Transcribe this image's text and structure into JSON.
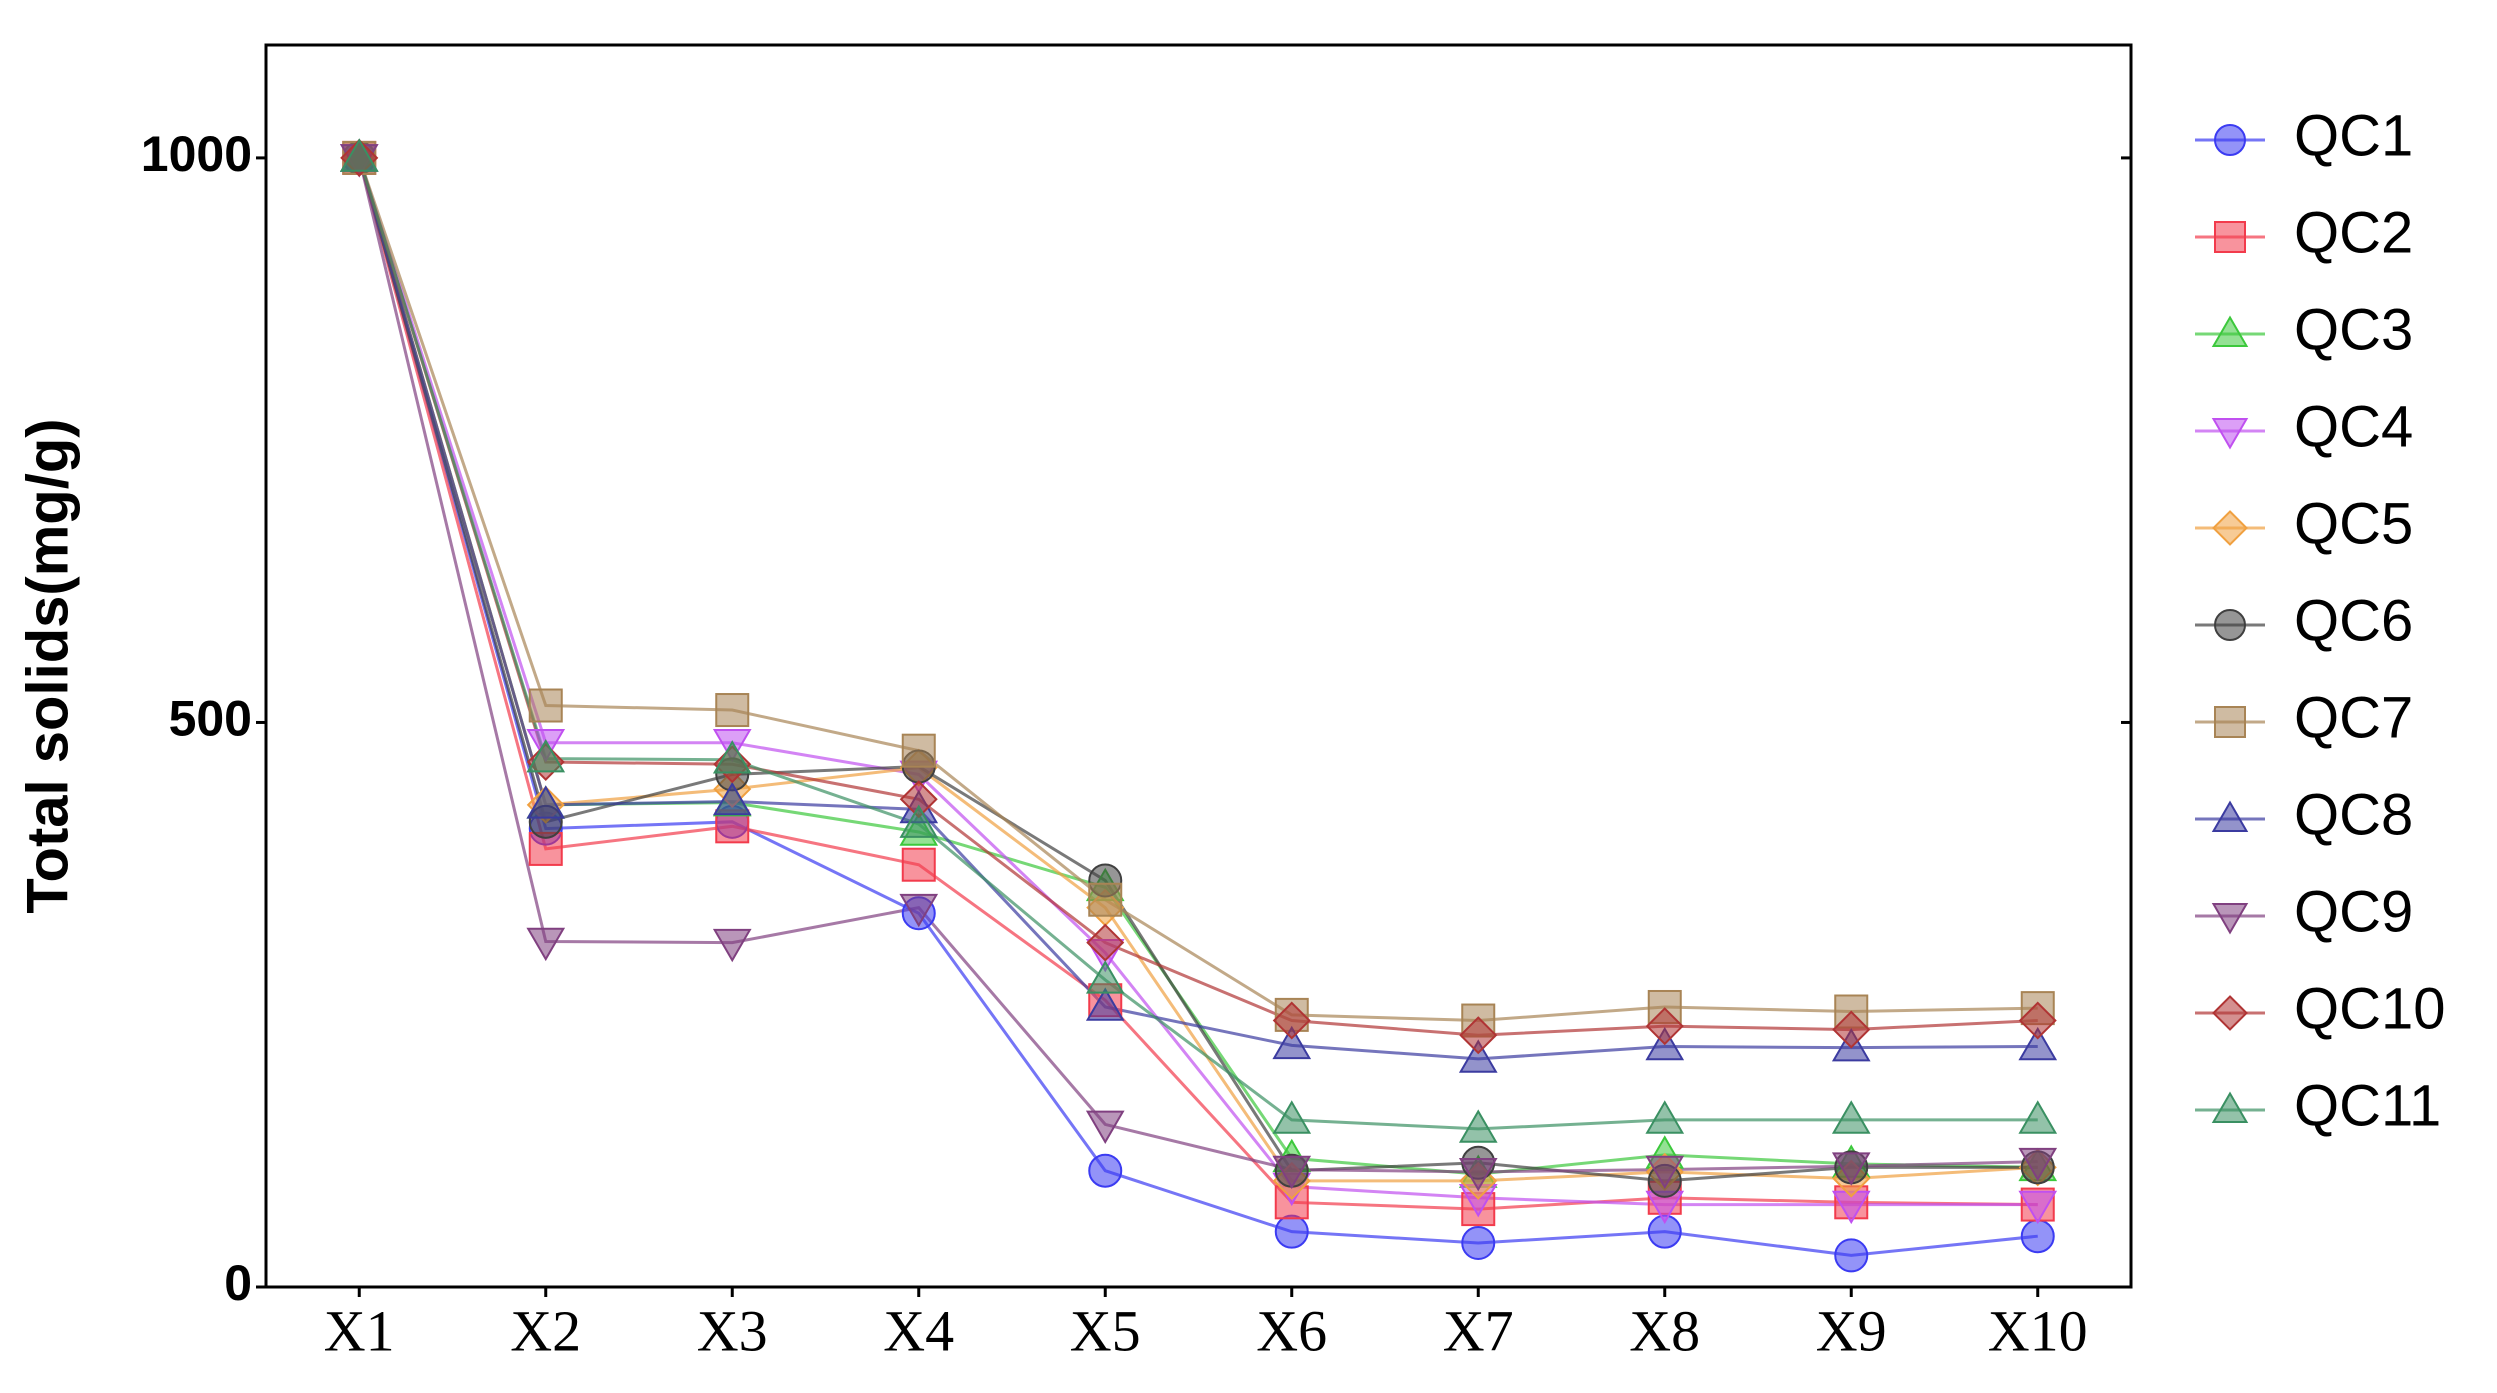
{
  "chart_data": {
    "type": "line",
    "y_label": "Total solids(mg/g)",
    "categories": [
      "X1",
      "X2",
      "X3",
      "X4",
      "X5",
      "X6",
      "X7",
      "X8",
      "X9",
      "X10"
    ],
    "ylim": [
      0,
      1100
    ],
    "yticks": [
      0,
      500,
      1000
    ],
    "grid": false,
    "legend": "outside-right",
    "series": [
      {
        "name": "QC1",
        "color": "#3b3bf2",
        "marker": "circle",
        "values": [
          1000,
          406,
          412,
          331,
          103,
          49,
          39,
          49,
          28,
          45
        ]
      },
      {
        "name": "QC2",
        "color": "#f23b4c",
        "marker": "square",
        "values": [
          1000,
          388,
          408,
          374,
          254,
          75,
          69,
          79,
          75,
          73
        ]
      },
      {
        "name": "QC3",
        "color": "#3cc83c",
        "marker": "triangle-up",
        "values": [
          1000,
          427,
          429,
          403,
          354,
          114,
          100,
          117,
          109,
          106
        ]
      },
      {
        "name": "QC4",
        "color": "#c050f0",
        "marker": "triangle-down",
        "values": [
          1000,
          482,
          482,
          454,
          296,
          89,
          79,
          73,
          73,
          73
        ]
      },
      {
        "name": "QC5",
        "color": "#f0a040",
        "marker": "diamond",
        "values": [
          1000,
          427,
          441,
          460,
          336,
          94,
          94,
          102,
          96,
          106
        ]
      },
      {
        "name": "QC6",
        "color": "#404040",
        "marker": "circle",
        "values": [
          1000,
          412,
          454,
          461,
          360,
          103,
          110,
          94,
          106,
          106
        ]
      },
      {
        "name": "QC7",
        "color": "#a88455",
        "marker": "square",
        "values": [
          1000,
          515,
          511,
          475,
          343,
          241,
          236,
          248,
          244,
          247
        ]
      },
      {
        "name": "QC8",
        "color": "#3b3ba0",
        "marker": "triangle-up",
        "values": [
          1000,
          427,
          430,
          423,
          248,
          214,
          202,
          213,
          212,
          213
        ]
      },
      {
        "name": "QC9",
        "color": "#804080",
        "marker": "triangle-down",
        "values": [
          1000,
          306,
          305,
          336,
          144,
          104,
          102,
          104,
          107,
          111
        ]
      },
      {
        "name": "QC10",
        "color": "#b03434",
        "marker": "diamond",
        "values": [
          1000,
          465,
          463,
          432,
          305,
          236,
          223,
          231,
          228,
          236
        ]
      },
      {
        "name": "QC11",
        "color": "#3a9062",
        "marker": "triangle-up",
        "values": [
          1000,
          468,
          467,
          410,
          272,
          148,
          140,
          148,
          148,
          148
        ]
      }
    ]
  }
}
